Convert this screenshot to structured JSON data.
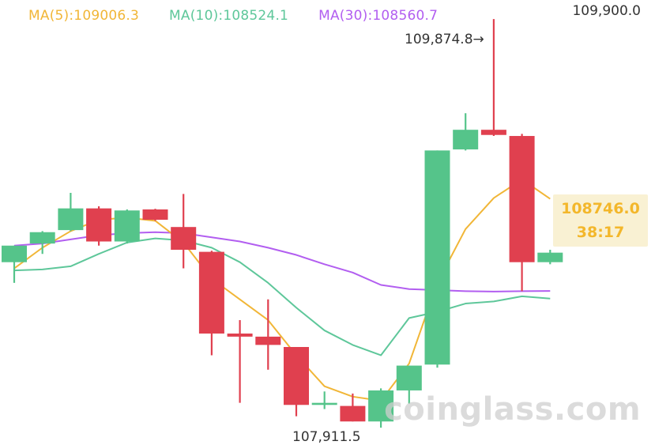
{
  "legend": {
    "ma5_label": "MA(5):109006.3",
    "ma10_label": "MA(10):108524.1",
    "ma30_label": "MA(30):108560.7"
  },
  "colors": {
    "up": "#55c48a",
    "down": "#e0404f",
    "ma5": "#f1b637",
    "ma10": "#5ec79a",
    "ma30": "#b25ef0",
    "price_tag_text": "#f3b72b"
  },
  "axis": {
    "top_price_label": "109,900.0"
  },
  "annotations": {
    "high_label": "109,874.8→",
    "low_label": "107,911.5"
  },
  "price_tag": {
    "price": "108746.0",
    "countdown": "38:17"
  },
  "watermark": "coinglass.com",
  "chart_data": {
    "type": "candlestick",
    "ylim": [
      107885,
      109910
    ],
    "candles": [
      {
        "open": 108700,
        "close": 108780,
        "high": 108780,
        "low": 108600
      },
      {
        "open": 108790,
        "close": 108845,
        "high": 108850,
        "low": 108740
      },
      {
        "open": 108855,
        "close": 108960,
        "high": 109035,
        "low": 108850
      },
      {
        "open": 108960,
        "close": 108800,
        "high": 108970,
        "low": 108780
      },
      {
        "open": 108800,
        "close": 108950,
        "high": 108955,
        "low": 108790
      },
      {
        "open": 108955,
        "close": 108905,
        "high": 108958,
        "low": 108900
      },
      {
        "open": 108870,
        "close": 108760,
        "high": 109030,
        "low": 108670
      },
      {
        "open": 108750,
        "close": 108355,
        "high": 108755,
        "low": 108250
      },
      {
        "open": 108355,
        "close": 108340,
        "high": 108420,
        "low": 108020
      },
      {
        "open": 108340,
        "close": 108300,
        "high": 108520,
        "low": 108180
      },
      {
        "open": 108290,
        "close": 108010,
        "high": 108290,
        "low": 107955
      },
      {
        "open": 108010,
        "close": 108020,
        "high": 108075,
        "low": 107990
      },
      {
        "open": 108005,
        "close": 107930,
        "high": 108065,
        "low": 107930
      },
      {
        "open": 107930,
        "close": 108080,
        "high": 108090,
        "low": 107900
      },
      {
        "open": 108080,
        "close": 108200,
        "high": 108200,
        "low": 108015
      },
      {
        "open": 108205,
        "close": 109240,
        "high": 109240,
        "low": 108190
      },
      {
        "open": 109245,
        "close": 109340,
        "high": 109420,
        "low": 109240
      },
      {
        "open": 109340,
        "close": 109315,
        "high": 109875,
        "low": 109310
      },
      {
        "open": 109310,
        "close": 108700,
        "high": 109320,
        "low": 108560
      },
      {
        "open": 108700,
        "close": 108746,
        "high": 108760,
        "low": 108690
      }
    ],
    "ma5": [
      108670,
      108770,
      108850,
      108905,
      108915,
      108900,
      108795,
      108620,
      108520,
      108420,
      108250,
      108100,
      108050,
      108030,
      108210,
      108600,
      108860,
      109010,
      109100,
      109006.3
    ],
    "ma10": [
      108660,
      108665,
      108680,
      108740,
      108795,
      108815,
      108805,
      108770,
      108700,
      108600,
      108480,
      108370,
      108300,
      108250,
      108430,
      108460,
      108500,
      108510,
      108535,
      108524.1
    ],
    "ma30": [
      108780,
      108790,
      108810,
      108830,
      108840,
      108845,
      108840,
      108820,
      108800,
      108770,
      108735,
      108690,
      108650,
      108590,
      108570,
      108565,
      108560,
      108558,
      108560,
      108560.7
    ]
  }
}
